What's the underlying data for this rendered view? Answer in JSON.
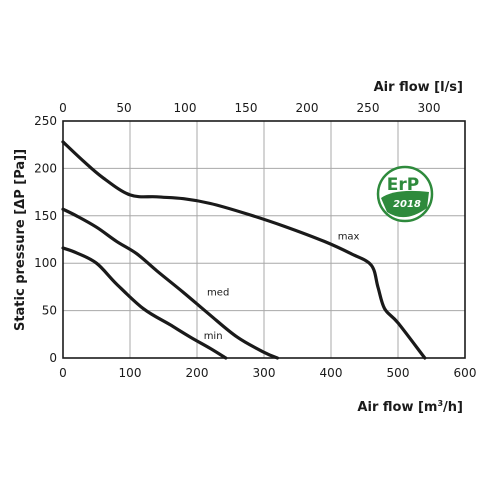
{
  "chart_data": {
    "type": "line",
    "xlabel_bottom": "Air flow [m³/h]",
    "xlabel_top": "Air flow [l/s]",
    "ylabel": "Static pressure [ΔP (Pa)]",
    "xlim": [
      0,
      600
    ],
    "ylim": [
      0,
      250
    ],
    "x_ticks_bottom": [
      0,
      100,
      200,
      300,
      400,
      500,
      600
    ],
    "x_ticks_top": [
      "0",
      "50",
      "100",
      "150",
      "200",
      "250",
      "300"
    ],
    "y_ticks": [
      0,
      50,
      100,
      150,
      200,
      250
    ],
    "grid": true,
    "series": [
      {
        "name": "max",
        "x": [
          0,
          30,
          60,
          100,
          140,
          180,
          220,
          270,
          330,
          390,
          430,
          460,
          470,
          480,
          500,
          540
        ],
        "y": [
          228,
          208,
          190,
          172,
          170,
          168,
          163,
          153,
          139,
          123,
          110,
          98,
          75,
          52,
          37,
          0
        ]
      },
      {
        "name": "med",
        "x": [
          0,
          20,
          50,
          80,
          110,
          140,
          180,
          220,
          260,
          300,
          320
        ],
        "y": [
          157,
          150,
          138,
          123,
          110,
          92,
          69,
          45,
          22,
          6,
          0
        ]
      },
      {
        "name": "min",
        "x": [
          0,
          20,
          50,
          80,
          120,
          160,
          190,
          220,
          243
        ],
        "y": [
          116,
          111,
          100,
          78,
          52,
          35,
          22,
          10,
          0
        ]
      }
    ]
  },
  "badge": {
    "line1": "ErP",
    "line2": "2018",
    "color": "#2e8a3c"
  }
}
